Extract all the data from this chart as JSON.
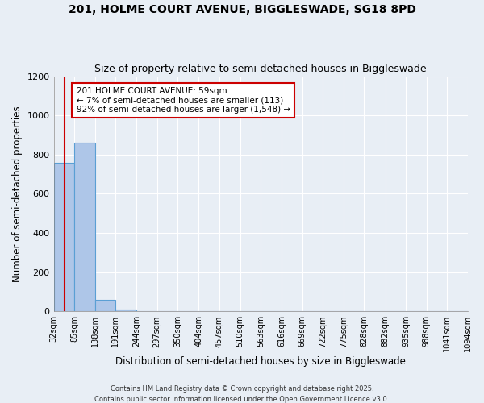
{
  "title1": "201, HOLME COURT AVENUE, BIGGLESWADE, SG18 8PD",
  "title2": "Size of property relative to semi-detached houses in Biggleswade",
  "xlabel": "Distribution of semi-detached houses by size in Biggleswade",
  "ylabel": "Number of semi-detached properties",
  "bin_edges": [
    32,
    85,
    138,
    191,
    244,
    297,
    350,
    404,
    457,
    510,
    563,
    616,
    669,
    722,
    775,
    828,
    882,
    935,
    988,
    1041,
    1094
  ],
  "bin_labels": [
    "32sqm",
    "85sqm",
    "138sqm",
    "191sqm",
    "244sqm",
    "297sqm",
    "350sqm",
    "404sqm",
    "457sqm",
    "510sqm",
    "563sqm",
    "616sqm",
    "669sqm",
    "722sqm",
    "775sqm",
    "828sqm",
    "882sqm",
    "935sqm",
    "988sqm",
    "1041sqm",
    "1094sqm"
  ],
  "bar_heights": [
    757,
    860,
    57,
    10,
    0,
    0,
    0,
    0,
    0,
    0,
    0,
    0,
    0,
    0,
    0,
    0,
    0,
    0,
    0,
    0
  ],
  "bar_color": "#aec6e8",
  "bar_edge_color": "#5a9fd4",
  "bg_color": "#e8eef5",
  "grid_color": "#ffffff",
  "property_size": 59,
  "property_line_color": "#cc0000",
  "annotation_text": "201 HOLME COURT AVENUE: 59sqm\n← 7% of semi-detached houses are smaller (113)\n92% of semi-detached houses are larger (1,548) →",
  "annotation_box_color": "#cc0000",
  "ylim": [
    0,
    1200
  ],
  "yticks": [
    0,
    200,
    400,
    600,
    800,
    1000,
    1200
  ],
  "footer1": "Contains HM Land Registry data © Crown copyright and database right 2025.",
  "footer2": "Contains public sector information licensed under the Open Government Licence v3.0."
}
